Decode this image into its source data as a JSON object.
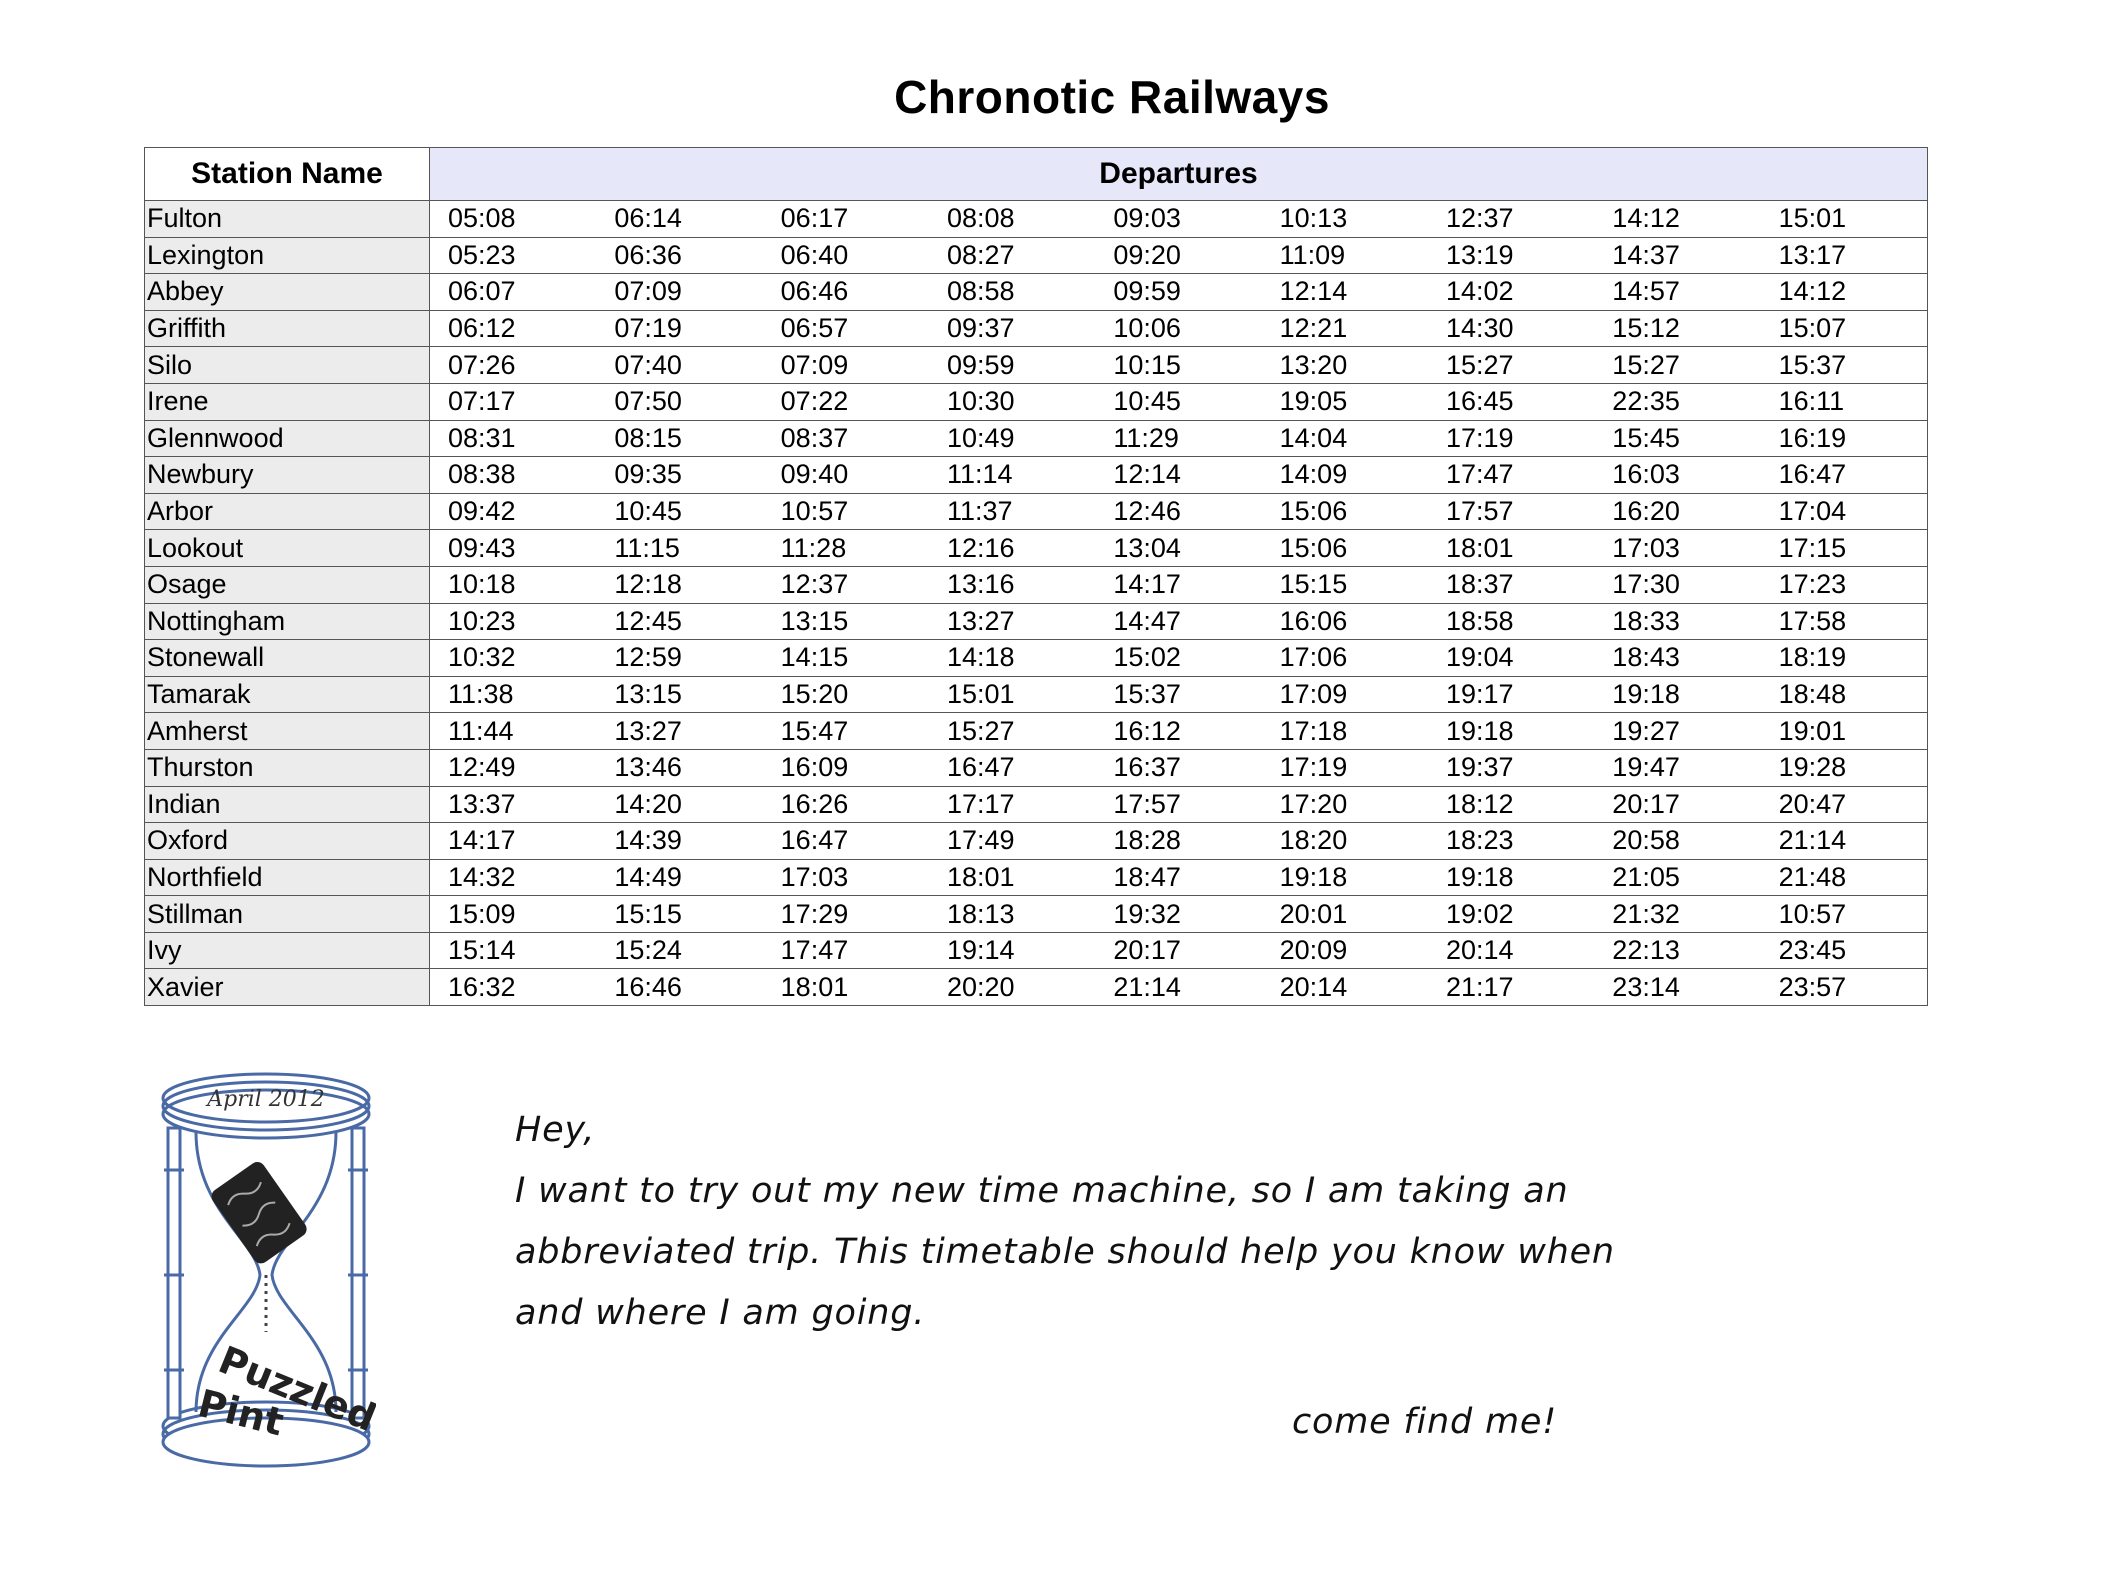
{
  "title": "Chronotic Railways",
  "table": {
    "station_header": "Station Name",
    "departures_header": "Departures",
    "rows": [
      {
        "station": "Fulton",
        "times": [
          "05:08",
          "06:14",
          "06:17",
          "08:08",
          "09:03",
          "10:13",
          "12:37",
          "14:12",
          "15:01"
        ]
      },
      {
        "station": "Lexington",
        "times": [
          "05:23",
          "06:36",
          "06:40",
          "08:27",
          "09:20",
          "11:09",
          "13:19",
          "14:37",
          "13:17"
        ]
      },
      {
        "station": "Abbey",
        "times": [
          "06:07",
          "07:09",
          "06:46",
          "08:58",
          "09:59",
          "12:14",
          "14:02",
          "14:57",
          "14:12"
        ]
      },
      {
        "station": "Griffith",
        "times": [
          "06:12",
          "07:19",
          "06:57",
          "09:37",
          "10:06",
          "12:21",
          "14:30",
          "15:12",
          "15:07"
        ]
      },
      {
        "station": "Silo",
        "times": [
          "07:26",
          "07:40",
          "07:09",
          "09:59",
          "10:15",
          "13:20",
          "15:27",
          "15:27",
          "15:37"
        ]
      },
      {
        "station": "Irene",
        "times": [
          "07:17",
          "07:50",
          "07:22",
          "10:30",
          "10:45",
          "19:05",
          "16:45",
          "22:35",
          "16:11"
        ]
      },
      {
        "station": "Glennwood",
        "times": [
          "08:31",
          "08:15",
          "08:37",
          "10:49",
          "11:29",
          "14:04",
          "17:19",
          "15:45",
          "16:19"
        ]
      },
      {
        "station": "Newbury",
        "times": [
          "08:38",
          "09:35",
          "09:40",
          "11:14",
          "12:14",
          "14:09",
          "17:47",
          "16:03",
          "16:47"
        ]
      },
      {
        "station": "Arbor",
        "times": [
          "09:42",
          "10:45",
          "10:57",
          "11:37",
          "12:46",
          "15:06",
          "17:57",
          "16:20",
          "17:04"
        ]
      },
      {
        "station": "Lookout",
        "times": [
          "09:43",
          "11:15",
          "11:28",
          "12:16",
          "13:04",
          "15:06",
          "18:01",
          "17:03",
          "17:15"
        ]
      },
      {
        "station": "Osage",
        "times": [
          "10:18",
          "12:18",
          "12:37",
          "13:16",
          "14:17",
          "15:15",
          "18:37",
          "17:30",
          "17:23"
        ]
      },
      {
        "station": "Nottingham",
        "times": [
          "10:23",
          "12:45",
          "13:15",
          "13:27",
          "14:47",
          "16:06",
          "18:58",
          "18:33",
          "17:58"
        ]
      },
      {
        "station": "Stonewall",
        "times": [
          "10:32",
          "12:59",
          "14:15",
          "14:18",
          "15:02",
          "17:06",
          "19:04",
          "18:43",
          "18:19"
        ]
      },
      {
        "station": "Tamarak",
        "times": [
          "11:38",
          "13:15",
          "15:20",
          "15:01",
          "15:37",
          "17:09",
          "19:17",
          "19:18",
          "18:48"
        ]
      },
      {
        "station": "Amherst",
        "times": [
          "11:44",
          "13:27",
          "15:47",
          "15:27",
          "16:12",
          "17:18",
          "19:18",
          "19:27",
          "19:01"
        ]
      },
      {
        "station": "Thurston",
        "times": [
          "12:49",
          "13:46",
          "16:09",
          "16:47",
          "16:37",
          "17:19",
          "19:37",
          "19:47",
          "19:28"
        ]
      },
      {
        "station": "Indian",
        "times": [
          "13:37",
          "14:20",
          "16:26",
          "17:17",
          "17:57",
          "17:20",
          "18:12",
          "20:17",
          "20:47"
        ]
      },
      {
        "station": "Oxford",
        "times": [
          "14:17",
          "14:39",
          "16:47",
          "17:49",
          "18:28",
          "18:20",
          "18:23",
          "20:58",
          "21:14"
        ]
      },
      {
        "station": "Northfield",
        "times": [
          "14:32",
          "14:49",
          "17:03",
          "18:01",
          "18:47",
          "19:18",
          "19:18",
          "21:05",
          "21:48"
        ]
      },
      {
        "station": "Stillman",
        "times": [
          "15:09",
          "15:15",
          "17:29",
          "18:13",
          "19:32",
          "20:01",
          "19:02",
          "21:32",
          "10:57"
        ]
      },
      {
        "station": "Ivy",
        "times": [
          "15:14",
          "15:24",
          "17:47",
          "19:14",
          "20:17",
          "20:09",
          "20:14",
          "22:13",
          "23:45"
        ]
      },
      {
        "station": "Xavier",
        "times": [
          "16:32",
          "16:46",
          "18:01",
          "20:20",
          "21:14",
          "20:14",
          "21:17",
          "23:14",
          "23:57"
        ]
      }
    ]
  },
  "logo": {
    "date_text": "April 2012",
    "brand_line1": "Puzzled",
    "brand_line2": "Pint",
    "icon": "hourglass-icon",
    "color": "#4a6aa5"
  },
  "note": {
    "greeting": "Hey,",
    "line1": "I want to try out my new time machine, so I am taking an",
    "line2": "abbreviated trip. This timetable should help you know when",
    "line3": "and where I am going.",
    "signoff": "come find me!"
  }
}
